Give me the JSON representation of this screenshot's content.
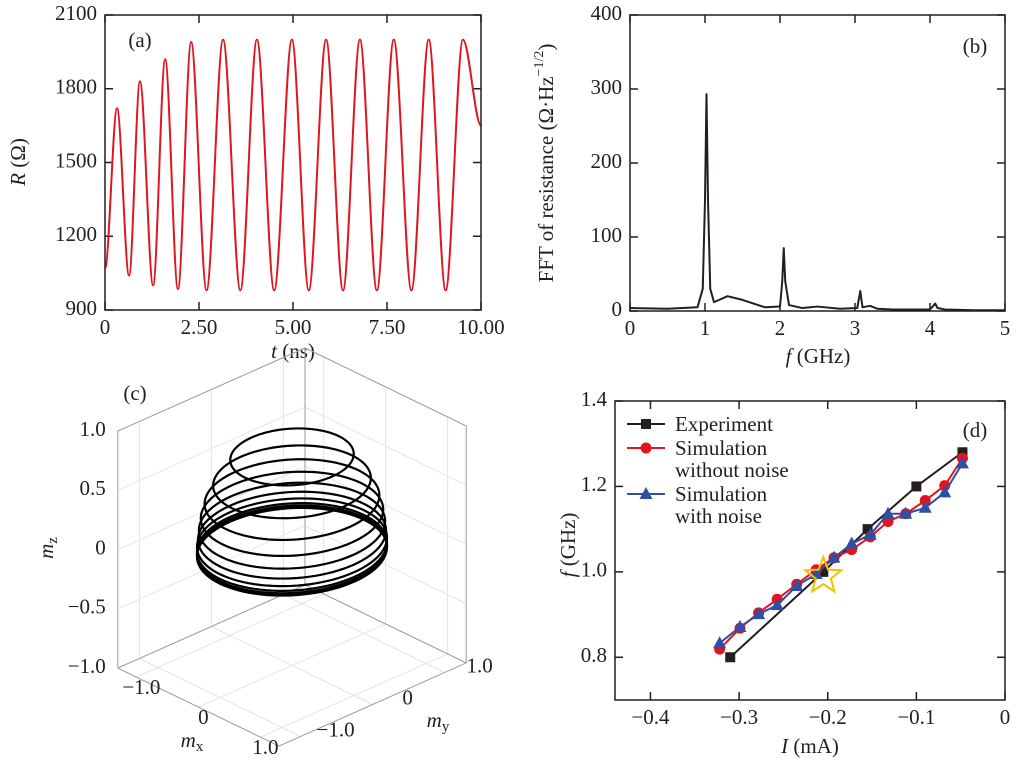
{
  "chart_data": [
    {
      "type": "line",
      "label": "(a)",
      "xlabel": [
        "t",
        " (ns)"
      ],
      "ylabel": [
        "R",
        " (Ω)"
      ],
      "color": "#e0161f",
      "smooth": true,
      "x": [
        0,
        0.32,
        0.64,
        0.93,
        1.28,
        1.6,
        1.94,
        2.29,
        2.7,
        3.14,
        3.6,
        4.04,
        4.5,
        4.97,
        5.42,
        5.88,
        6.33,
        6.78,
        7.23,
        7.68,
        8.15,
        8.61,
        9.06,
        9.52,
        10
      ],
      "values": [
        1070,
        1720,
        1040,
        1830,
        1000,
        1920,
        985,
        1990,
        980,
        2000,
        980,
        2000,
        980,
        2000,
        980,
        2000,
        980,
        2000,
        980,
        2000,
        980,
        2000,
        980,
        2000,
        1650
      ],
      "xlim": [
        0,
        10
      ],
      "ylim": [
        900,
        2100
      ],
      "xticks": [
        0,
        {
          "value": 2.5,
          "label": "2.50"
        },
        {
          "value": 5,
          "label": "5.00"
        },
        {
          "value": 7.5,
          "label": "7.50"
        },
        {
          "value": 10,
          "label": "10.00"
        }
      ],
      "yticks": [
        900,
        1200,
        1500,
        1800,
        2100
      ]
    },
    {
      "type": "line",
      "label": "(b)",
      "xlabel": [
        "f",
        " (GHz)"
      ],
      "ylabel": [
        "FFT of resistance (Ω·Hz",
        "−1/2",
        ")"
      ],
      "color": "#231f20",
      "smooth": false,
      "x": [
        0,
        0.5,
        0.9,
        0.97,
        1.0,
        1.02,
        1.04,
        1.07,
        1.12,
        1.3,
        1.5,
        1.8,
        2.0,
        2.03,
        2.05,
        2.07,
        2.12,
        2.3,
        2.5,
        2.8,
        3.03,
        3.07,
        3.1,
        3.2,
        3.3,
        3.5,
        4.0,
        4.07,
        4.1,
        4.2,
        4.6,
        5
      ],
      "values": [
        4,
        3,
        5,
        30,
        150,
        293,
        150,
        30,
        12,
        20,
        15,
        5,
        6,
        40,
        85,
        40,
        8,
        4,
        6,
        3,
        4,
        27,
        5,
        7,
        3,
        2,
        2,
        10,
        4,
        2,
        1,
        1
      ],
      "xlim": [
        0,
        5
      ],
      "ylim": [
        0,
        400
      ],
      "xticks": [
        0,
        1,
        2,
        3,
        4,
        5
      ],
      "yticks": [
        0,
        100,
        200,
        300,
        400
      ]
    },
    {
      "type": "line3d",
      "label": "(c)",
      "xlabel": [
        "m",
        "x"
      ],
      "ylabel": [
        "m",
        "y"
      ],
      "zlabel": [
        "m",
        "z"
      ],
      "color": "#000000",
      "z": [
        0.76,
        0.55,
        0.4,
        0.28,
        0.18,
        0.1,
        0.04,
        0.0,
        -0.02,
        -0.03,
        -0.04
      ],
      "radius": [
        0.65,
        0.83,
        0.92,
        0.96,
        0.98,
        0.99,
        1,
        1,
        1,
        1,
        1
      ],
      "xlim": [
        -1.3,
        1.3
      ],
      "ylim": [
        -1.3,
        1.3
      ],
      "zlim": [
        -1,
        1
      ],
      "xticks": [
        {
          "value": -1,
          "label": "−1.0"
        },
        0,
        {
          "value": 1,
          "label": "1.0"
        }
      ],
      "yticks": [
        {
          "value": -1,
          "label": "−1.0"
        },
        0,
        {
          "value": 1,
          "label": "1.0"
        }
      ],
      "zticks": [
        {
          "value": -1,
          "label": "−1.0"
        },
        {
          "value": -0.5,
          "label": "−0.5"
        },
        0,
        {
          "value": 0.5,
          "label": "0.5"
        },
        {
          "value": 1,
          "label": "1.0"
        }
      ],
      "grid": true
    },
    {
      "type": "line",
      "label": "(d)",
      "xlabel": [
        "I",
        " (mA)"
      ],
      "ylabel": [
        "f",
        " (GHz)"
      ],
      "legend": "upper left",
      "smooth": false,
      "series": [
        {
          "name": "Experiment",
          "color": "#231f20",
          "marker": "square",
          "x": [
            -0.31,
            -0.205,
            -0.155,
            -0.1,
            -0.048
          ],
          "values": [
            0.8,
            1.0,
            1.1,
            1.2,
            1.28
          ]
        },
        {
          "name": "Simulation\nwithout noise",
          "color": "#e3141e",
          "marker": "circle",
          "x": [
            -0.322,
            -0.299,
            -0.278,
            -0.257,
            -0.235,
            -0.213,
            -0.193,
            -0.173,
            -0.152,
            -0.132,
            -0.112,
            -0.09,
            -0.068,
            -0.048
          ],
          "values": [
            0.819,
            0.868,
            0.904,
            0.936,
            0.971,
            1.005,
            1.033,
            1.052,
            1.082,
            1.118,
            1.136,
            1.167,
            1.202,
            1.266
          ]
        },
        {
          "name": "Simulation\nwith noise",
          "color": "#2e4fa3",
          "marker": "triangle",
          "x": [
            -0.322,
            -0.299,
            -0.278,
            -0.257,
            -0.235,
            -0.213,
            -0.193,
            -0.173,
            -0.152,
            -0.132,
            -0.112,
            -0.09,
            -0.068,
            -0.048
          ],
          "values": [
            0.833,
            0.871,
            0.901,
            0.922,
            0.967,
            0.995,
            1.033,
            1.066,
            1.087,
            1.136,
            1.136,
            1.15,
            1.186,
            1.254
          ]
        }
      ],
      "highlight": {
        "x": -0.205,
        "y": 0.99,
        "color": "#f2c200"
      },
      "xlim": [
        -0.44,
        0
      ],
      "ylim": [
        0.7,
        1.4
      ],
      "xticks": [
        {
          "value": -0.4,
          "label": "−0.4"
        },
        {
          "value": -0.3,
          "label": "−0.3"
        },
        {
          "value": -0.2,
          "label": "−0.2"
        },
        {
          "value": -0.1,
          "label": "−0.1"
        },
        0
      ],
      "yticks": [
        0.8,
        {
          "value": 1.0,
          "label": "1.0"
        },
        1.2,
        1.4
      ]
    }
  ]
}
